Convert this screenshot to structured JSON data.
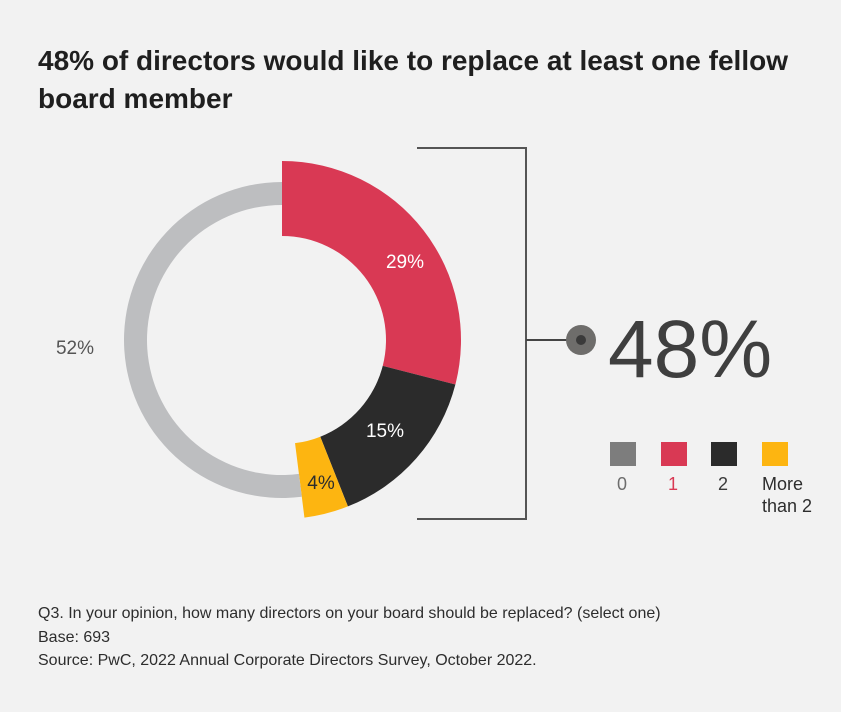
{
  "title": "48% of directors would like to replace at least one fellow board member",
  "callout": {
    "value": "48%"
  },
  "chart_data": {
    "type": "pie",
    "variant": "donut",
    "title": "48% of directors would like to replace at least one fellow board member",
    "categories": [
      "0",
      "1",
      "2",
      "More than 2"
    ],
    "values": [
      52,
      29,
      15,
      4
    ],
    "labels": [
      "52%",
      "29%",
      "15%",
      "4%"
    ],
    "colors": [
      "#bdbec0",
      "#d93954",
      "#2b2b2b",
      "#fdb511"
    ],
    "legend_colors": [
      "#7d7d7d",
      "#d93954",
      "#2b2b2b",
      "#fdb511"
    ],
    "label_colors": [
      "#6d6d6d",
      "#d93954",
      "#3a3a3a",
      "#2d2d2d"
    ],
    "legend_position": "bottom-right"
  },
  "footnote": {
    "question": "Q3. In your opinion, how many directors on your board should be replaced? (select one)",
    "base": "Base: 693",
    "source": "Source: PwC, 2022 Annual Corporate Directors Survey, October 2022."
  }
}
